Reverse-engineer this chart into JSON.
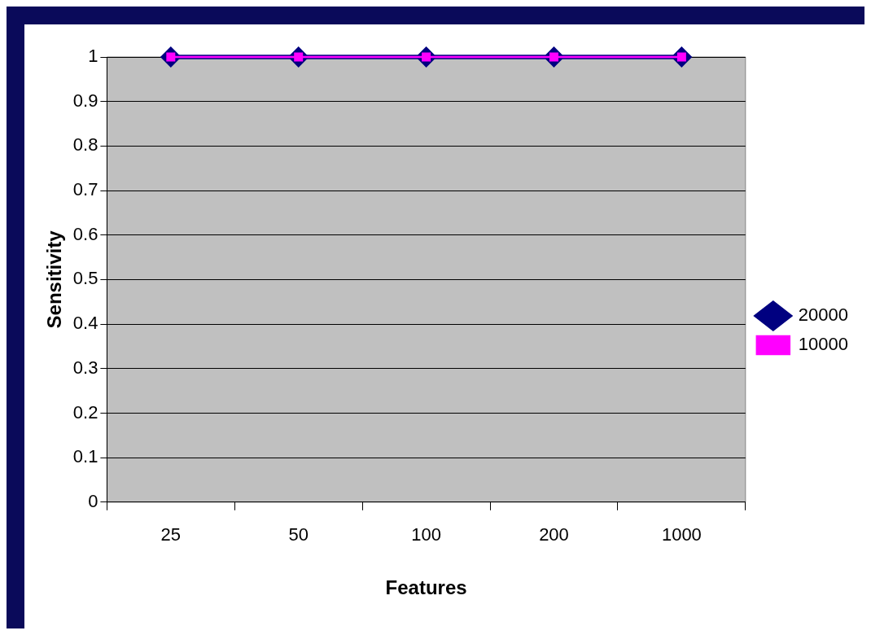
{
  "chart_data": {
    "type": "line",
    "xlabel": "Features",
    "ylabel": "Sensitivity",
    "categories": [
      "25",
      "50",
      "100",
      "200",
      "1000"
    ],
    "series": [
      {
        "name": "20000",
        "color": "#000080",
        "values": [
          1,
          1,
          1,
          1,
          1
        ],
        "marker": "diamond"
      },
      {
        "name": "10000",
        "color": "#ff00ff",
        "values": [
          1,
          1,
          1,
          1,
          1
        ],
        "marker": "square"
      }
    ],
    "ylim": [
      0,
      1
    ],
    "yticks": [
      0,
      0.1,
      0.2,
      0.3,
      0.4,
      0.5,
      0.6,
      0.7,
      0.8,
      0.9,
      1
    ],
    "grid": "y",
    "legend": "right",
    "line_style": "solid"
  }
}
